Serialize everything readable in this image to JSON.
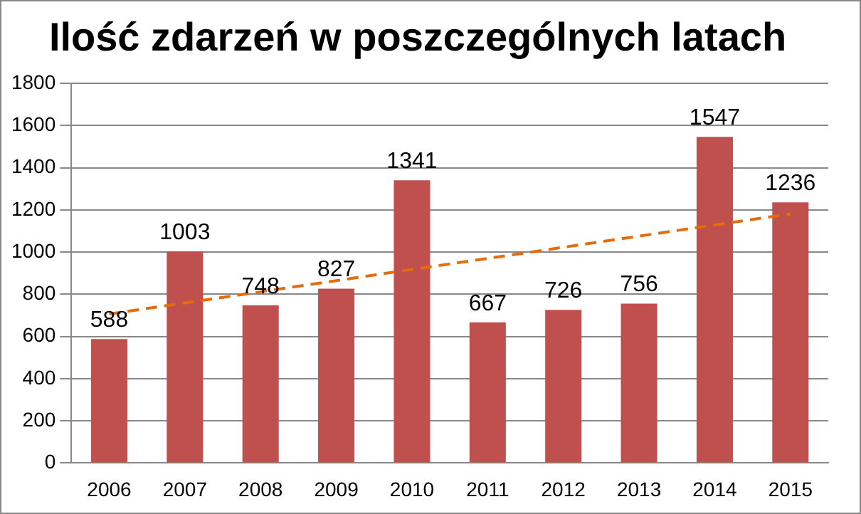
{
  "chart_data": {
    "type": "bar",
    "title": "Ilość zdarzeń w poszczególnych latach",
    "categories": [
      "2006",
      "2007",
      "2008",
      "2009",
      "2010",
      "2011",
      "2012",
      "2013",
      "2014",
      "2015"
    ],
    "series": [
      {
        "color": "#c0504d",
        "values": [
          588,
          1003,
          748,
          827,
          1341,
          667,
          726,
          756,
          1547,
          1236
        ],
        "value_labels": [
          "588",
          "1003",
          "748",
          "827",
          "1341",
          "667",
          "726",
          "756",
          "1547",
          "1236"
        ]
      },
      {
        "type": "line",
        "color": "#e46c0a",
        "values": [
          707,
          759,
          812,
          865,
          918,
          970,
          1023,
          1076,
          1129,
          1181
        ],
        "line_style": "dashed",
        "marker": "none"
      }
    ],
    "ylim": [
      0,
      1800
    ],
    "yticks": [
      0,
      200,
      400,
      600,
      800,
      1000,
      1200,
      1400,
      1600,
      1800
    ],
    "grid": "y",
    "legend": false
  }
}
